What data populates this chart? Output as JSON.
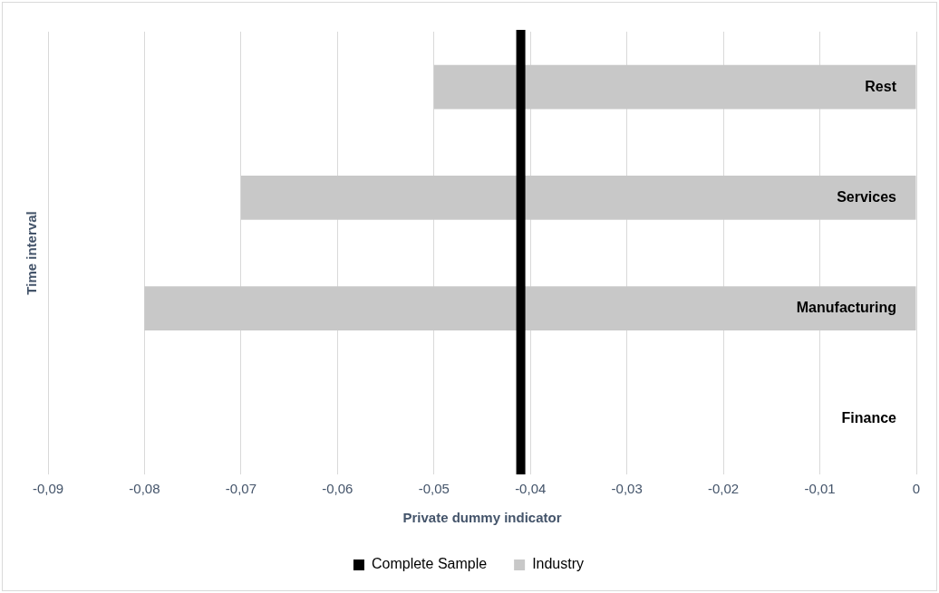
{
  "chart_data": {
    "type": "bar",
    "orientation": "horizontal",
    "xlabel": "Private dummy indicator",
    "ylabel": "Time interval",
    "categories": [
      "Rest",
      "Services",
      "Manufacturing",
      "Finance"
    ],
    "series": [
      {
        "name": "Industry",
        "color": "#c8c8c8",
        "values": [
          -0.05,
          -0.07,
          -0.08,
          0
        ]
      }
    ],
    "xlim": [
      -0.09,
      0
    ],
    "xticks": [
      {
        "value": -0.09,
        "label": "-0,09"
      },
      {
        "value": -0.08,
        "label": "-0,08"
      },
      {
        "value": -0.07,
        "label": "-0,07"
      },
      {
        "value": -0.06,
        "label": "-0,06"
      },
      {
        "value": -0.05,
        "label": "-0,05"
      },
      {
        "value": -0.04,
        "label": "-0,04"
      },
      {
        "value": -0.03,
        "label": "-0,03"
      },
      {
        "value": -0.02,
        "label": "-0,02"
      },
      {
        "value": -0.01,
        "label": "-0,01"
      },
      0
    ],
    "ref_lines": [
      {
        "axis": "x",
        "value": -0.041,
        "label": "Complete Sample",
        "color": "#000000"
      }
    ],
    "grid": "x",
    "legend": "bottom"
  }
}
